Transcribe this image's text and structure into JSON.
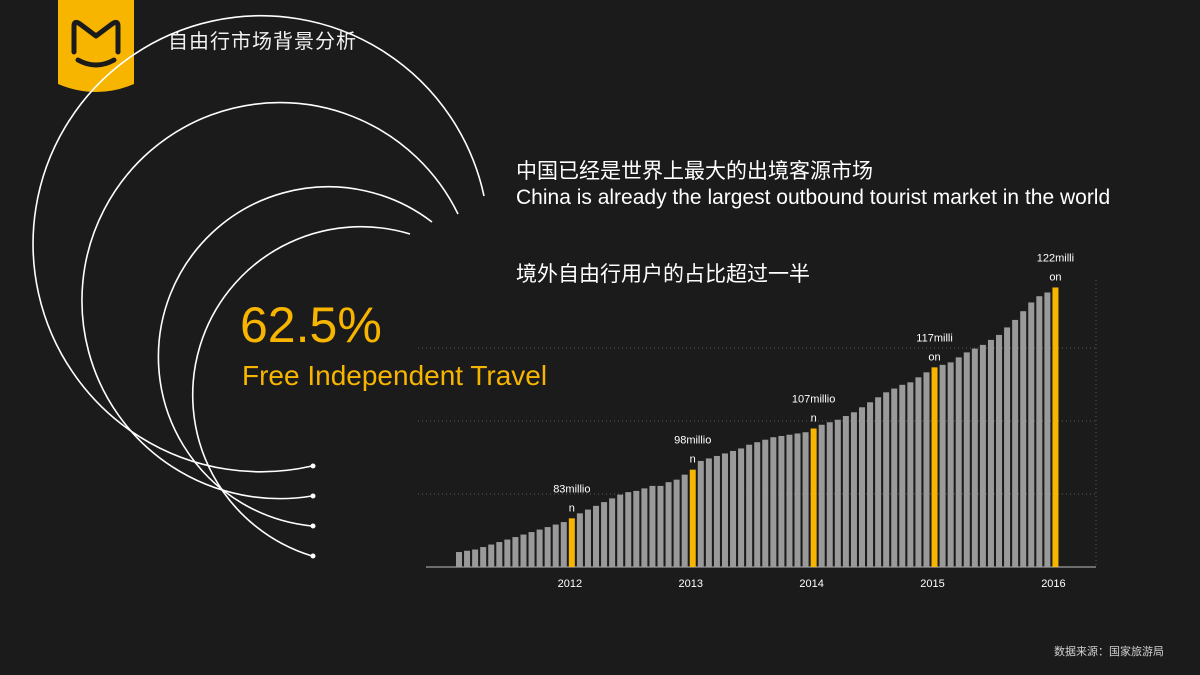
{
  "slide": {
    "title": "自由行市场背景分析",
    "headline_cn": "中国已经是世界上最大的出境客源市场",
    "headline_en": "China is already the largest outbound tourist market in the world",
    "subhead_cn": "境外自由行用户的占比超过一半",
    "percent": "62.5%",
    "percent_label": "Free Independent Travel",
    "source": "数据来源：国家旅游局"
  },
  "colors": {
    "background": "#1b1b1c",
    "accent": "#f7b500",
    "bar": "#9a9a9a",
    "text": "#ffffff"
  },
  "chart_data": {
    "type": "bar",
    "x_tick_labels": [
      "2012",
      "2013",
      "2014",
      "2015",
      "2016"
    ],
    "highlight_labels": [
      "83millio\nn",
      "98millio\nn",
      "107millio\nn",
      "117milli\non",
      "122milli\non"
    ],
    "highlight_values_million": [
      83,
      98,
      107,
      117,
      122
    ],
    "highlight_indices": [
      14,
      29,
      44,
      59,
      74
    ],
    "values": [
      12,
      13,
      14,
      16,
      18,
      20,
      22,
      24,
      26,
      28,
      30,
      32,
      34,
      36,
      39,
      43,
      46,
      49,
      52,
      55,
      58,
      60,
      61,
      63,
      65,
      65,
      68,
      70,
      74,
      78,
      85,
      87,
      89,
      91,
      93,
      95,
      98,
      100,
      102,
      104,
      105,
      106,
      107,
      108,
      111,
      114,
      116,
      118,
      121,
      124,
      128,
      132,
      136,
      140,
      143,
      146,
      148,
      152,
      156,
      160,
      162,
      164,
      168,
      172,
      175,
      178,
      182,
      186,
      192,
      198,
      205,
      212,
      217,
      220,
      224
    ],
    "grid": "dotted-horizontal",
    "xlabel": "",
    "ylabel": ""
  }
}
